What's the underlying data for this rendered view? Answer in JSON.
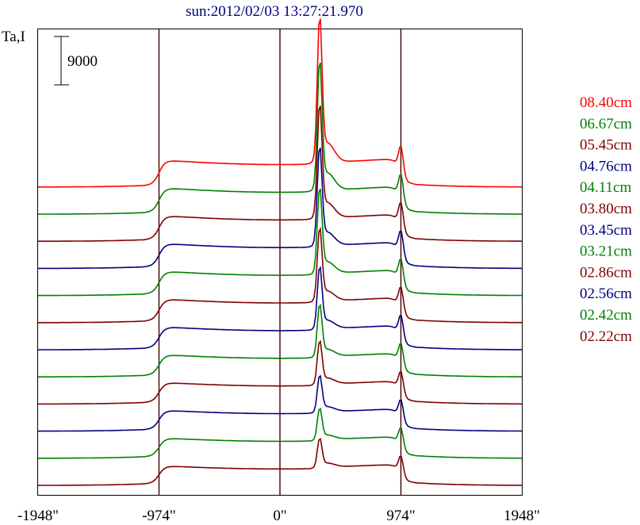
{
  "chart_data": {
    "type": "line",
    "title": "sun:2012/02/03 13:27:21.970",
    "ylabel": "Ta,I",
    "scale_bar_label": "9000",
    "scale_bar_value": 9000,
    "xlim": [
      -1948,
      1948
    ],
    "xticks": [
      -1948,
      -974,
      0,
      974,
      1948
    ],
    "xtick_labels": [
      "-1948\"",
      "-974\"",
      "0\"",
      "974\"",
      "1948\""
    ],
    "vlines": [
      -974,
      0,
      974
    ],
    "series": [
      {
        "name": "08.40cm",
        "color": "#ff0000"
      },
      {
        "name": "06.67cm",
        "color": "#008000"
      },
      {
        "name": "05.45cm",
        "color": "#800000"
      },
      {
        "name": "04.76cm",
        "color": "#000080"
      },
      {
        "name": "04.11cm",
        "color": "#008000"
      },
      {
        "name": "03.80cm",
        "color": "#800000"
      },
      {
        "name": "03.45cm",
        "color": "#000080"
      },
      {
        "name": "03.21cm",
        "color": "#008000"
      },
      {
        "name": "02.86cm",
        "color": "#800000"
      },
      {
        "name": "02.56cm",
        "color": "#000080"
      },
      {
        "name": "02.42cm",
        "color": "#008000"
      },
      {
        "name": "02.22cm",
        "color": "#800000"
      }
    ]
  }
}
